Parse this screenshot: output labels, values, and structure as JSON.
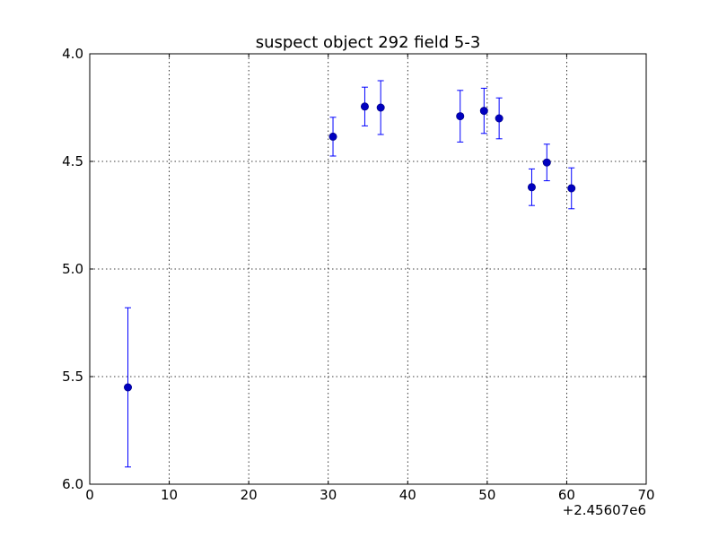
{
  "chart_data": {
    "type": "scatter",
    "title": "suspect object 292 field 5-3",
    "xlabel": "",
    "ylabel": "",
    "x_offset_label": "+2.45607e6",
    "xlim": [
      0,
      70
    ],
    "ylim": [
      4.0,
      6.0
    ],
    "y_inverted": true,
    "grid": true,
    "x_ticks": [
      "0",
      "10",
      "20",
      "30",
      "40",
      "50",
      "60",
      "70"
    ],
    "y_ticks": [
      "4.0",
      "4.5",
      "5.0",
      "5.5",
      "6.0"
    ],
    "x_tick_values": [
      0,
      10,
      20,
      30,
      40,
      50,
      60,
      70
    ],
    "y_tick_values": [
      4.0,
      4.5,
      5.0,
      5.5,
      6.0
    ],
    "marker_color": "#0000bf",
    "errorbar_color": "#0000ff",
    "points": [
      {
        "x": 4.8,
        "y": 5.55,
        "yerr": 0.37
      },
      {
        "x": 30.6,
        "y": 4.385,
        "yerr": 0.09
      },
      {
        "x": 34.6,
        "y": 4.245,
        "yerr": 0.09
      },
      {
        "x": 36.6,
        "y": 4.25,
        "yerr": 0.125
      },
      {
        "x": 46.6,
        "y": 4.29,
        "yerr": 0.12
      },
      {
        "x": 49.6,
        "y": 4.265,
        "yerr": 0.105
      },
      {
        "x": 51.5,
        "y": 4.3,
        "yerr": 0.095
      },
      {
        "x": 55.6,
        "y": 4.62,
        "yerr": 0.085
      },
      {
        "x": 57.5,
        "y": 4.505,
        "yerr": 0.085
      },
      {
        "x": 60.6,
        "y": 4.625,
        "yerr": 0.095
      }
    ]
  }
}
